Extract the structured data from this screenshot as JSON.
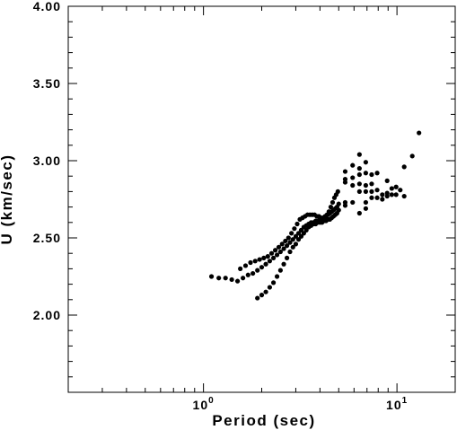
{
  "chart_data": {
    "type": "scatter",
    "title": "",
    "xlabel": "Period (sec)",
    "ylabel": "U (km/sec)",
    "xscale": "log",
    "xlim": [
      0.2,
      20
    ],
    "ylim": [
      1.5,
      4.0
    ],
    "x_tick_labels": [
      {
        "value": 1,
        "base": "10",
        "exp": "0"
      },
      {
        "value": 10,
        "base": "10",
        "exp": "1"
      }
    ],
    "y_tick_labels": [
      "2.00",
      "2.50",
      "3.00",
      "3.50",
      "4.00"
    ],
    "y_tick_values": [
      2.0,
      2.5,
      3.0,
      3.5,
      4.0
    ],
    "grid": false,
    "legend": "none",
    "marker_color": "#000000",
    "points": [
      [
        1.1,
        2.25
      ],
      [
        1.2,
        2.24
      ],
      [
        1.3,
        2.24
      ],
      [
        1.4,
        2.23
      ],
      [
        1.5,
        2.22
      ],
      [
        1.6,
        2.24
      ],
      [
        1.7,
        2.26
      ],
      [
        1.8,
        2.27
      ],
      [
        1.9,
        2.29
      ],
      [
        2.0,
        2.31
      ],
      [
        2.1,
        2.33
      ],
      [
        2.2,
        2.35
      ],
      [
        2.3,
        2.37
      ],
      [
        2.4,
        2.39
      ],
      [
        2.5,
        2.41
      ],
      [
        2.6,
        2.43
      ],
      [
        2.7,
        2.45
      ],
      [
        2.8,
        2.47
      ],
      [
        2.9,
        2.49
      ],
      [
        3.0,
        2.51
      ],
      [
        3.1,
        2.53
      ],
      [
        3.2,
        2.55
      ],
      [
        3.3,
        2.57
      ],
      [
        3.4,
        2.58
      ],
      [
        3.5,
        2.59
      ],
      [
        3.6,
        2.6
      ],
      [
        3.7,
        2.6
      ],
      [
        3.8,
        2.61
      ],
      [
        3.9,
        2.61
      ],
      [
        4.0,
        2.62
      ],
      [
        4.1,
        2.62
      ],
      [
        4.2,
        2.63
      ],
      [
        4.3,
        2.64
      ],
      [
        4.4,
        2.65
      ],
      [
        4.5,
        2.66
      ],
      [
        4.6,
        2.67
      ],
      [
        4.7,
        2.68
      ],
      [
        4.8,
        2.69
      ],
      [
        4.9,
        2.7
      ],
      [
        5.0,
        2.72
      ],
      [
        1.55,
        2.3
      ],
      [
        1.65,
        2.32
      ],
      [
        1.75,
        2.34
      ],
      [
        1.85,
        2.35
      ],
      [
        1.95,
        2.36
      ],
      [
        2.05,
        2.37
      ],
      [
        2.15,
        2.38
      ],
      [
        2.25,
        2.4
      ],
      [
        2.35,
        2.42
      ],
      [
        2.45,
        2.44
      ],
      [
        2.55,
        2.46
      ],
      [
        2.65,
        2.48
      ],
      [
        2.75,
        2.5
      ],
      [
        2.85,
        2.53
      ],
      [
        2.95,
        2.56
      ],
      [
        3.05,
        2.59
      ],
      [
        3.15,
        2.62
      ],
      [
        3.25,
        2.63
      ],
      [
        3.35,
        2.64
      ],
      [
        3.45,
        2.65
      ],
      [
        3.55,
        2.65
      ],
      [
        3.65,
        2.65
      ],
      [
        3.75,
        2.65
      ],
      [
        3.85,
        2.64
      ],
      [
        3.95,
        2.64
      ],
      [
        4.05,
        2.63
      ],
      [
        4.15,
        2.63
      ],
      [
        4.25,
        2.64
      ],
      [
        4.35,
        2.65
      ],
      [
        4.45,
        2.67
      ],
      [
        4.55,
        2.7
      ],
      [
        4.65,
        2.73
      ],
      [
        4.75,
        2.76
      ],
      [
        4.85,
        2.78
      ],
      [
        4.95,
        2.8
      ],
      [
        1.9,
        2.11
      ],
      [
        2.0,
        2.13
      ],
      [
        2.1,
        2.15
      ],
      [
        2.2,
        2.18
      ],
      [
        2.3,
        2.21
      ],
      [
        2.4,
        2.25
      ],
      [
        2.5,
        2.29
      ],
      [
        2.6,
        2.33
      ],
      [
        2.7,
        2.37
      ],
      [
        2.8,
        2.41
      ],
      [
        2.9,
        2.44
      ],
      [
        3.0,
        2.46
      ],
      [
        3.1,
        2.49
      ],
      [
        3.2,
        2.51
      ],
      [
        3.3,
        2.53
      ],
      [
        3.4,
        2.55
      ],
      [
        3.5,
        2.57
      ],
      [
        3.6,
        2.58
      ],
      [
        3.7,
        2.59
      ],
      [
        3.8,
        2.59
      ],
      [
        3.9,
        2.6
      ],
      [
        4.0,
        2.6
      ],
      [
        4.1,
        2.6
      ],
      [
        4.2,
        2.61
      ],
      [
        4.3,
        2.61
      ],
      [
        4.4,
        2.62
      ],
      [
        4.5,
        2.62
      ],
      [
        4.6,
        2.63
      ],
      [
        4.7,
        2.64
      ],
      [
        4.8,
        2.65
      ],
      [
        4.9,
        2.66
      ],
      [
        5.0,
        2.68
      ],
      [
        5.4,
        2.93
      ],
      [
        5.4,
        2.88
      ],
      [
        5.4,
        2.86
      ],
      [
        5.4,
        2.73
      ],
      [
        5.4,
        2.71
      ],
      [
        5.9,
        2.97
      ],
      [
        5.9,
        2.89
      ],
      [
        5.9,
        2.84
      ],
      [
        5.9,
        2.73
      ],
      [
        6.4,
        3.04
      ],
      [
        6.4,
        2.95
      ],
      [
        6.4,
        2.91
      ],
      [
        6.4,
        2.85
      ],
      [
        6.4,
        2.8
      ],
      [
        6.4,
        2.66
      ],
      [
        6.9,
        2.99
      ],
      [
        6.9,
        2.92
      ],
      [
        6.9,
        2.84
      ],
      [
        6.9,
        2.8
      ],
      [
        6.9,
        2.73
      ],
      [
        6.9,
        2.69
      ],
      [
        7.4,
        2.91
      ],
      [
        7.4,
        2.85
      ],
      [
        7.4,
        2.8
      ],
      [
        7.4,
        2.76
      ],
      [
        7.9,
        2.92
      ],
      [
        7.9,
        2.81
      ],
      [
        7.9,
        2.76
      ],
      [
        8.4,
        2.78
      ],
      [
        8.4,
        2.75
      ],
      [
        8.9,
        2.87
      ],
      [
        8.9,
        2.79
      ],
      [
        8.9,
        2.77
      ],
      [
        9.4,
        2.82
      ],
      [
        9.4,
        2.78
      ],
      [
        9.9,
        2.83
      ],
      [
        9.9,
        2.78
      ],
      [
        10.4,
        2.81
      ],
      [
        10.9,
        2.96
      ],
      [
        10.9,
        2.77
      ],
      [
        12.0,
        3.03
      ],
      [
        13.0,
        3.18
      ]
    ]
  }
}
